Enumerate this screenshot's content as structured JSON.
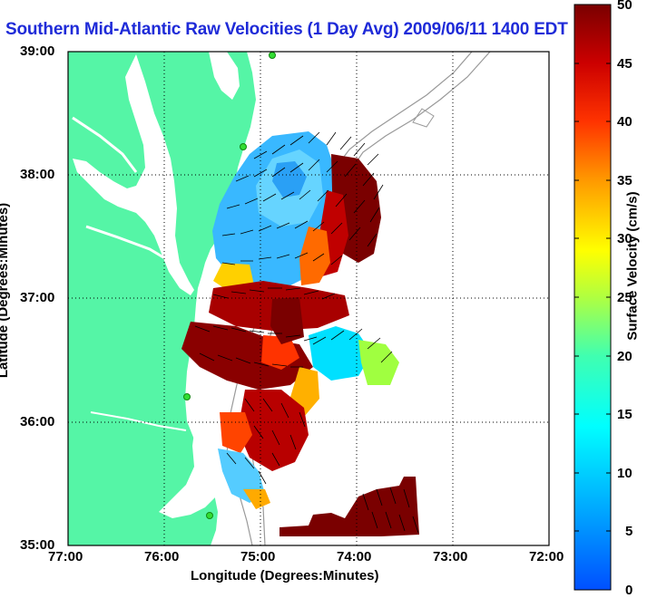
{
  "title": "Southern Mid-Atlantic Raw Velocities (1 Day Avg) 2009/06/11 1400 EDT",
  "axes": {
    "x_label": "Longitude (Degrees:Minutes)",
    "y_label": "Latitude (Degrees:Minutes)",
    "x_ticks": [
      "77:00",
      "76:00",
      "75:00",
      "74:00",
      "73:00",
      "72:00"
    ],
    "y_ticks": [
      "39:00",
      "38:00",
      "37:00",
      "36:00",
      "35:00"
    ]
  },
  "colorbar": {
    "label": "Surface Velocity (cm/s)",
    "ticks": [
      "50",
      "45",
      "40",
      "35",
      "30",
      "25",
      "20",
      "15",
      "10",
      "5",
      "0"
    ],
    "min": 0,
    "max": 50
  },
  "colors": {
    "land": "#55f5a6",
    "title": "#1f2bd8",
    "low": "#0060ff",
    "high": "#800000"
  }
}
